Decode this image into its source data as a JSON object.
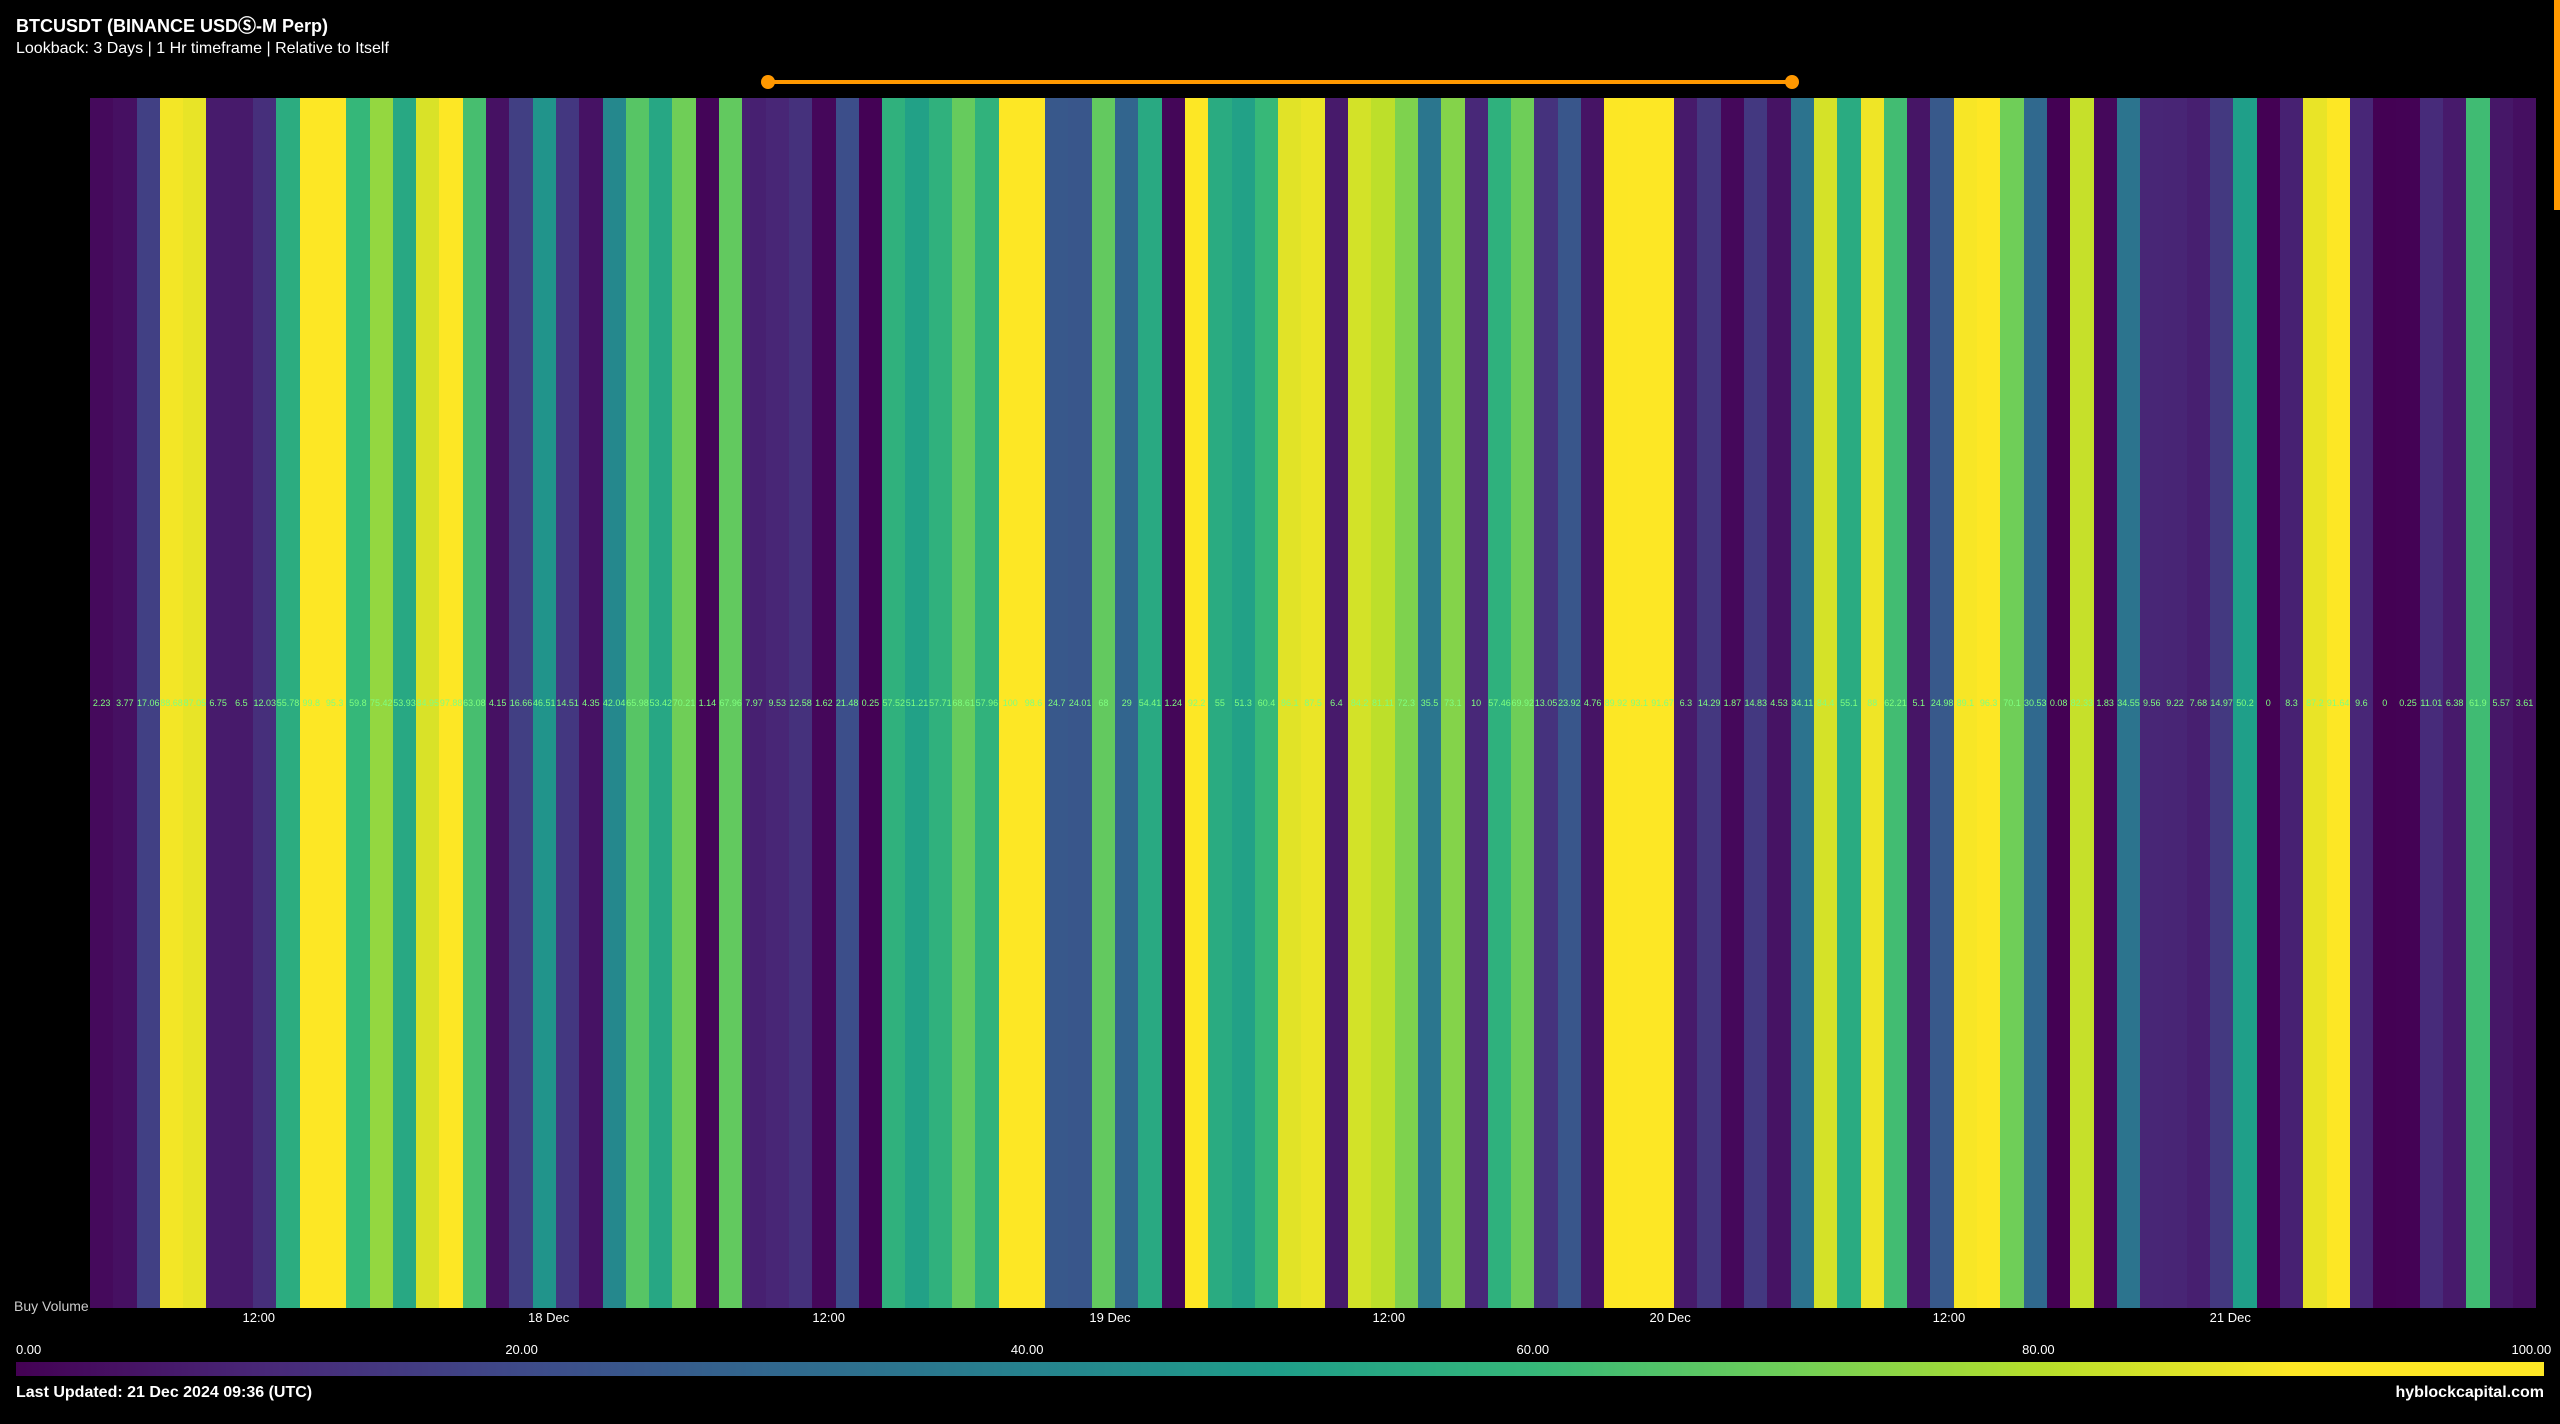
{
  "header": {
    "title": "BTCUSDT (BINANCE USDⓈ-M Perp)",
    "subtitle": "Lookback: 3 Days | 1 Hr timeframe | Relative to Itself"
  },
  "slider": {
    "track_color": "#ff9800",
    "handle_color": "#ff9800",
    "start_pct": 30,
    "end_pct": 70
  },
  "chart": {
    "type": "heatmap-stripes",
    "y_label": "Buy Volume",
    "background": "#000000",
    "value_label_color": "#7fff7f",
    "value_label_fontsize": 9,
    "x_ticks": [
      {
        "pos_pct": 6.9,
        "label": "12:00"
      },
      {
        "pos_pct": 18.75,
        "label": "18 Dec"
      },
      {
        "pos_pct": 30.2,
        "label": "12:00"
      },
      {
        "pos_pct": 41.7,
        "label": "19 Dec"
      },
      {
        "pos_pct": 53.1,
        "label": "12:00"
      },
      {
        "pos_pct": 64.6,
        "label": "20 Dec"
      },
      {
        "pos_pct": 76.0,
        "label": "12:00"
      },
      {
        "pos_pct": 87.5,
        "label": "21 Dec"
      }
    ],
    "values": [
      2.23,
      3.77,
      17.06,
      88.68,
      87.05,
      6.75,
      6.5,
      12.03,
      55.78,
      99.8,
      95.3,
      59.8,
      75.42,
      53.93,
      84.95,
      97.88,
      63.08,
      4.15,
      16.66,
      46.51,
      14.51,
      4.35,
      42.04,
      65.98,
      53.42,
      70.21,
      1.14,
      67.96,
      7.97,
      9.53,
      12.58,
      1.62,
      21.48,
      0.25,
      57.52,
      51.21,
      57.71,
      68.61,
      57.96,
      100.0,
      98.6,
      24.7,
      24.01,
      68,
      29,
      54.41,
      1.24,
      92.2,
      55,
      51.3,
      60.4,
      86.1,
      87.5,
      6.4,
      84.2,
      81.11,
      72.3,
      35.5,
      73.1,
      10,
      57.46,
      69.92,
      13.05,
      23.92,
      4.76,
      89.92,
      93.1,
      91.67,
      6.3,
      14.29,
      1.87,
      14.83,
      4.53,
      34.11,
      84.4,
      55.1,
      88,
      62.21,
      5.1,
      24.98,
      89.1,
      96.3,
      70.1,
      30.53,
      0.08,
      82.33,
      1.83,
      34.55,
      9.56,
      9.22,
      7.68,
      14.97,
      50.2,
      0,
      8.3,
      87.2,
      91.64,
      9.6,
      0.0,
      0.25,
      11.01,
      6.38,
      61.9,
      5.57,
      3.61
    ]
  },
  "colorscale": {
    "min": 0.0,
    "max": 100.0,
    "ticks": [
      {
        "pos_pct": 0.5,
        "label": "0.00"
      },
      {
        "pos_pct": 20,
        "label": "20.00"
      },
      {
        "pos_pct": 40,
        "label": "40.00"
      },
      {
        "pos_pct": 60,
        "label": "60.00"
      },
      {
        "pos_pct": 80,
        "label": "80.00"
      },
      {
        "pos_pct": 99.5,
        "label": "100.00"
      }
    ],
    "stops": [
      {
        "at": 0,
        "color": "#440154"
      },
      {
        "at": 10,
        "color": "#482878"
      },
      {
        "at": 20,
        "color": "#3e4a89"
      },
      {
        "at": 30,
        "color": "#31688e"
      },
      {
        "at": 40,
        "color": "#26828e"
      },
      {
        "at": 50,
        "color": "#1f9e89"
      },
      {
        "at": 60,
        "color": "#35b779"
      },
      {
        "at": 70,
        "color": "#6ece58"
      },
      {
        "at": 80,
        "color": "#b5de2b"
      },
      {
        "at": 90,
        "color": "#fde725"
      },
      {
        "at": 100,
        "color": "#fde725"
      }
    ]
  },
  "footer": {
    "last_updated": "Last Updated: 21 Dec 2024 09:36 (UTC)",
    "credit": "hyblockcapital.com"
  }
}
